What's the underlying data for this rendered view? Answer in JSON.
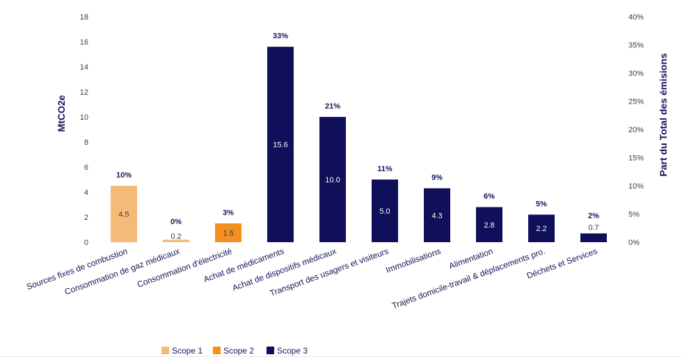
{
  "chart_data": {
    "type": "bar",
    "categories": [
      "Sources fixes de combustion",
      "Consommation de gaz médicaux",
      "Consommation d'électricité",
      "Achat de médicaments",
      "Achat de dispositifs médicaux",
      "Transport des usagers et visiteurs",
      "Immobilisations",
      "Alimentation",
      "Trajets domicile-travail & déplacements pro.",
      "Déchets et Services"
    ],
    "values": [
      4.5,
      0.2,
      1.5,
      15.6,
      10.0,
      5.0,
      4.3,
      2.8,
      2.2,
      0.7
    ],
    "value_labels": [
      "4.5",
      "0.2",
      "1.5",
      "15.6",
      "10.0",
      "5.0",
      "4.3",
      "2.8",
      "2.2",
      "0.7"
    ],
    "percent_labels": [
      "10%",
      "0%",
      "3%",
      "33%",
      "21%",
      "11%",
      "9%",
      "6%",
      "5%",
      "2%"
    ],
    "scopes": [
      "Scope 1",
      "Scope 1",
      "Scope 2",
      "Scope 3",
      "Scope 3",
      "Scope 3",
      "Scope 3",
      "Scope 3",
      "Scope 3",
      "Scope 3"
    ],
    "ylabel": "MtCO2e",
    "y2label": "Part du Total des émisions",
    "ylim": [
      0,
      18
    ],
    "yticks": [
      "0",
      "2",
      "4",
      "6",
      "8",
      "10",
      "12",
      "14",
      "16",
      "18"
    ],
    "y2lim": [
      0,
      40
    ],
    "y2ticks": [
      "0%",
      "5%",
      "10%",
      "15%",
      "20%",
      "25%",
      "30%",
      "35%",
      "40%"
    ],
    "legend": [
      {
        "name": "Scope 1",
        "color": "#f5b978"
      },
      {
        "name": "Scope 2",
        "color": "#f5901e"
      },
      {
        "name": "Scope 3",
        "color": "#0f0f5a"
      }
    ],
    "legend_position": "bottom-center",
    "grid": false
  }
}
